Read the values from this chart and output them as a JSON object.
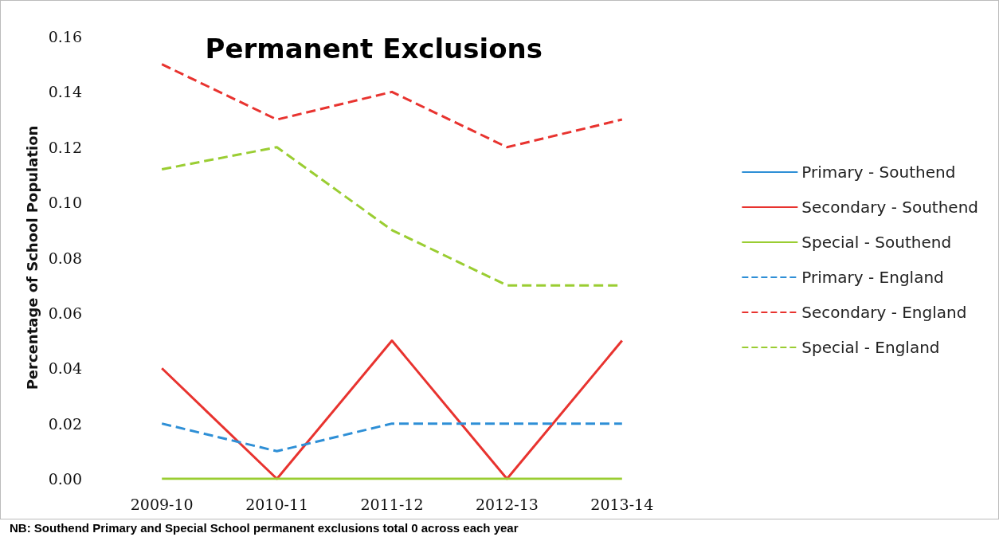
{
  "chart_data": {
    "type": "line",
    "title": "Permanent Exclusions",
    "ylabel": "Percentage of School Population",
    "categories": [
      "2009-10",
      "2010-11",
      "2011-12",
      "2012-13",
      "2013-14"
    ],
    "series": [
      {
        "name": "Primary - Southend",
        "color": "#2e8fd6",
        "line_style": "solid",
        "values": [
          null,
          null,
          null,
          null,
          null
        ]
      },
      {
        "name": "Secondary - Southend",
        "color": "#e8332f",
        "line_style": "solid",
        "values": [
          0.04,
          0,
          0.05,
          0,
          0.05
        ]
      },
      {
        "name": "Special - Southend",
        "color": "#9acd32",
        "line_style": "solid",
        "values": [
          0,
          0,
          0,
          0,
          0
        ]
      },
      {
        "name": "Primary - England",
        "color": "#2e8fd6",
        "line_style": "dashed",
        "values": [
          0.02,
          0.01,
          0.02,
          0.02,
          0.02
        ]
      },
      {
        "name": "Secondary - England",
        "color": "#e8332f",
        "line_style": "dashed",
        "values": [
          0.15,
          0.13,
          0.14,
          0.12,
          0.13
        ]
      },
      {
        "name": "Special - England",
        "color": "#9acd32",
        "line_style": "dashed",
        "values": [
          0.112,
          0.12,
          0.09,
          0.07,
          0.07
        ]
      }
    ],
    "ylim": [
      0,
      0.16
    ],
    "yticks": [
      {
        "value": 0,
        "label": "0.00"
      },
      {
        "value": 0.02,
        "label": "0.02"
      },
      {
        "value": 0.04,
        "label": "0.04"
      },
      {
        "value": 0.06,
        "label": "0.06"
      },
      {
        "value": 0.08,
        "label": "0.08"
      },
      {
        "value": 0.1,
        "label": "0.10"
      },
      {
        "value": 0.12,
        "label": "0.12"
      },
      {
        "value": 0.14,
        "label": "0.14"
      },
      {
        "value": 0.16,
        "label": "0.16"
      }
    ],
    "grid": false,
    "legend": "right",
    "marker": "none",
    "annotations": [
      "NB: Southend Primary and Special School permanent exclusions total 0 across each year"
    ]
  }
}
